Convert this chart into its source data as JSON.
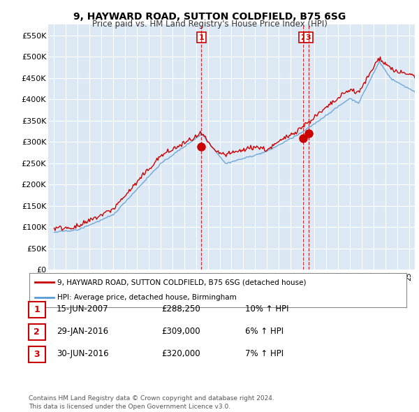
{
  "title": "9, HAYWARD ROAD, SUTTON COLDFIELD, B75 6SG",
  "subtitle": "Price paid vs. HM Land Registry's House Price Index (HPI)",
  "ylabel_ticks": [
    "£0",
    "£50K",
    "£100K",
    "£150K",
    "£200K",
    "£250K",
    "£300K",
    "£350K",
    "£400K",
    "£450K",
    "£500K",
    "£550K"
  ],
  "ytick_vals": [
    0,
    50000,
    100000,
    150000,
    200000,
    250000,
    300000,
    350000,
    400000,
    450000,
    500000,
    550000
  ],
  "ylim": [
    0,
    575000
  ],
  "background_color": "#ffffff",
  "plot_bg_color": "#dce9f5",
  "grid_color": "#ffffff",
  "red_line_color": "#cc0000",
  "blue_line_color": "#5b9bd5",
  "marker_color": "#cc0000",
  "sale1": {
    "date_idx": 2007.45,
    "price": 288250,
    "label": "1"
  },
  "sale2": {
    "date_idx": 2016.05,
    "price": 309000,
    "label": "2"
  },
  "sale3": {
    "date_idx": 2016.5,
    "price": 320000,
    "label": "3"
  },
  "legend_line1": "9, HAYWARD ROAD, SUTTON COLDFIELD, B75 6SG (detached house)",
  "legend_line2": "HPI: Average price, detached house, Birmingham",
  "table_rows": [
    {
      "num": "1",
      "date": "15-JUN-2007",
      "price": "£288,250",
      "change": "10% ↑ HPI"
    },
    {
      "num": "2",
      "date": "29-JAN-2016",
      "price": "£309,000",
      "change": "6% ↑ HPI"
    },
    {
      "num": "3",
      "date": "30-JUN-2016",
      "price": "£320,000",
      "change": "7% ↑ HPI"
    }
  ],
  "footer": "Contains HM Land Registry data © Crown copyright and database right 2024.\nThis data is licensed under the Open Government Licence v3.0.",
  "xmin": 1994.5,
  "xmax": 2025.5
}
